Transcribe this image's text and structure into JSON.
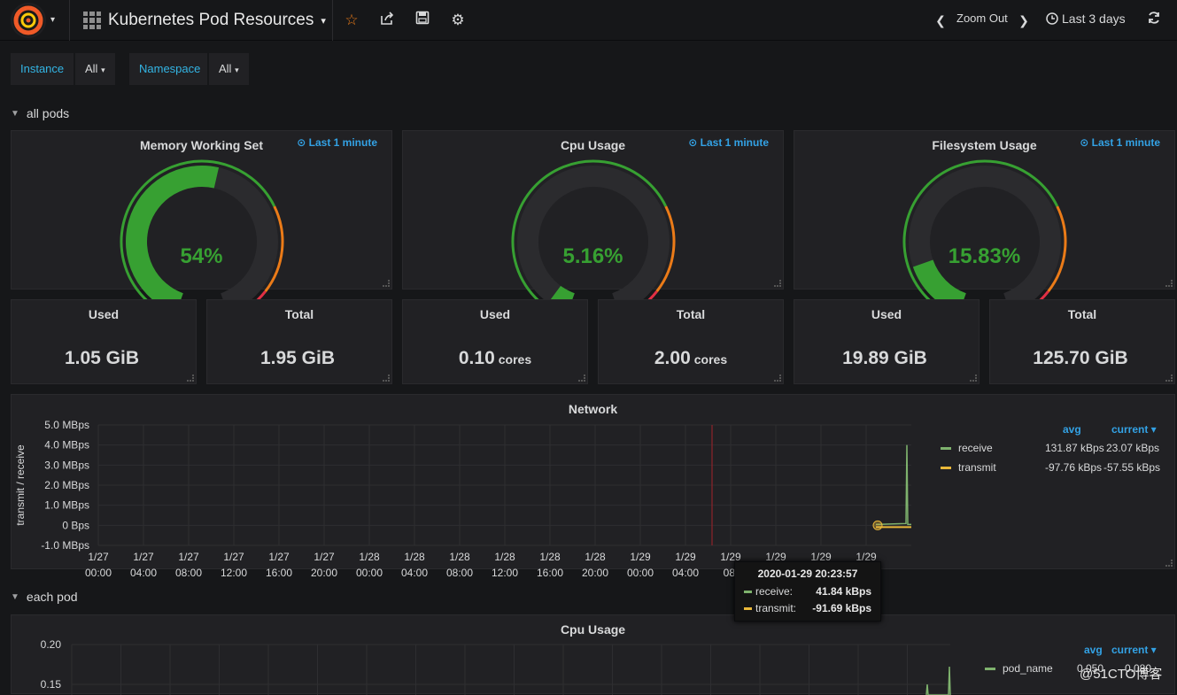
{
  "topbar": {
    "dashboard_title": "Kubernetes Pod Resources",
    "zoom_out": "Zoom Out",
    "time_range": "Last 3 days",
    "icons": [
      "grafana-logo",
      "star-icon",
      "share-icon",
      "save-icon",
      "gear-icon",
      "chevron-left-icon",
      "chevron-right-icon",
      "clock-icon",
      "refresh-icon"
    ]
  },
  "variables": [
    {
      "label": "Instance",
      "value": "All"
    },
    {
      "label": "Namespace",
      "value": "All"
    }
  ],
  "rows": {
    "all_pods": "all pods",
    "each_pod": "each pod"
  },
  "gauges": [
    {
      "title": "Memory Working Set",
      "time": "Last 1 minute",
      "value": "54%",
      "fraction": 0.54
    },
    {
      "title": "Cpu Usage",
      "time": "Last 1 minute",
      "value": "5.16%",
      "fraction": 0.0516
    },
    {
      "title": "Filesystem Usage",
      "time": "Last 1 minute",
      "value": "15.83%",
      "fraction": 0.1583
    }
  ],
  "stats": [
    {
      "title": "Used",
      "value": "1.05 GiB",
      "unit": ""
    },
    {
      "title": "Total",
      "value": "1.95 GiB",
      "unit": ""
    },
    {
      "title": "Used",
      "value": "0.10",
      "unit": "cores"
    },
    {
      "title": "Total",
      "value": "2.00",
      "unit": "cores"
    },
    {
      "title": "Used",
      "value": "19.89 GiB",
      "unit": ""
    },
    {
      "title": "Total",
      "value": "125.70 GiB",
      "unit": ""
    }
  ],
  "network": {
    "title": "Network",
    "ylabel": "transmit / receive",
    "yticks": [
      "5.0 MBps",
      "4.0 MBps",
      "3.0 MBps",
      "2.0 MBps",
      "1.0 MBps",
      "0 Bps",
      "-1.0 MBps"
    ],
    "xticks_date": [
      "1/27",
      "1/27",
      "1/27",
      "1/27",
      "1/27",
      "1/27",
      "1/28",
      "1/28",
      "1/28",
      "1/28",
      "1/28",
      "1/28",
      "1/29",
      "1/29",
      "1/29",
      "1/29",
      "1/29",
      "1/29"
    ],
    "xticks_time": [
      "00:00",
      "04:00",
      "08:00",
      "12:00",
      "16:00",
      "20:00",
      "00:00",
      "04:00",
      "08:00",
      "12:00",
      "16:00",
      "20:00",
      "00:00",
      "04:00",
      "08:",
      "",
      "",
      ""
    ],
    "legend": {
      "avg_header": "avg",
      "current_header": "current ▾",
      "items": [
        {
          "name": "receive",
          "avg": "131.87 kBps",
          "current": "23.07 kBps",
          "color": "#7eb26d"
        },
        {
          "name": "transmit",
          "avg": "-97.76 kBps",
          "current": "-57.55 kBps",
          "color": "#eab839"
        }
      ]
    },
    "tooltip": {
      "time": "2020-01-29 20:23:57",
      "rows": [
        {
          "name": "receive:",
          "value": "41.84 kBps",
          "color": "#7eb26d"
        },
        {
          "name": "transmit:",
          "value": "-91.69 kBps",
          "color": "#eab839"
        }
      ]
    }
  },
  "cpu_pod": {
    "title": "Cpu Usage",
    "yticks": [
      "0.20",
      "0.15"
    ],
    "legend": {
      "avg_header": "avg",
      "current_header": "current ▾",
      "items": [
        {
          "name": "pod_name",
          "avg": "0.050",
          "current": "0.080",
          "color": "#7eb26d"
        }
      ]
    }
  },
  "watermark": "@51CTO博客"
}
